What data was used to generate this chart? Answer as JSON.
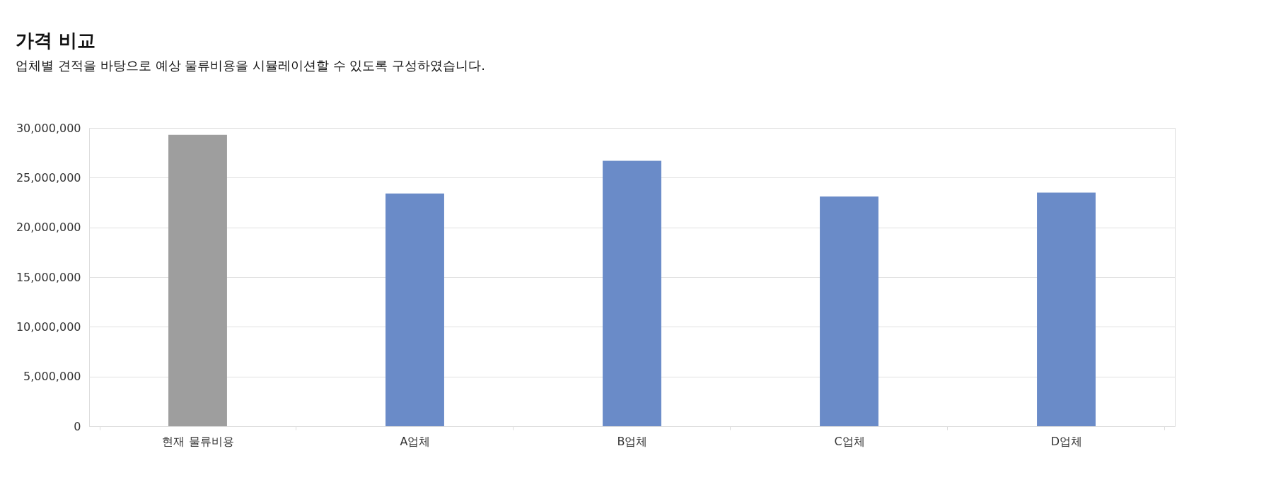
{
  "chart_data": {
    "type": "bar",
    "title": "가격 비교",
    "subtitle": "업체별 견적을 바탕으로 예상 물류비용을 시뮬레이션할 수 있도록 구성하였습니다.",
    "categories": [
      "현재 물류비용",
      "A업체",
      "B업체",
      "C업체",
      "D업체"
    ],
    "values": [
      29300000,
      23400000,
      26700000,
      23100000,
      23500000
    ],
    "colors": [
      "#9e9e9e",
      "#6a8bc8",
      "#6a8bc8",
      "#6a8bc8",
      "#6a8bc8"
    ],
    "ylim": [
      0,
      30000000
    ],
    "yticks": [
      0,
      {
        "value": 5000000,
        "label": "5,000,000"
      },
      {
        "value": 10000000,
        "label": "10,000,000"
      },
      {
        "value": 15000000,
        "label": "15,000,000"
      },
      {
        "value": 20000000,
        "label": "20,000,000"
      },
      {
        "value": 25000000,
        "label": "25,000,000"
      },
      {
        "value": 30000000,
        "label": "30,000,000"
      }
    ],
    "grid": "y",
    "legend": false
  }
}
